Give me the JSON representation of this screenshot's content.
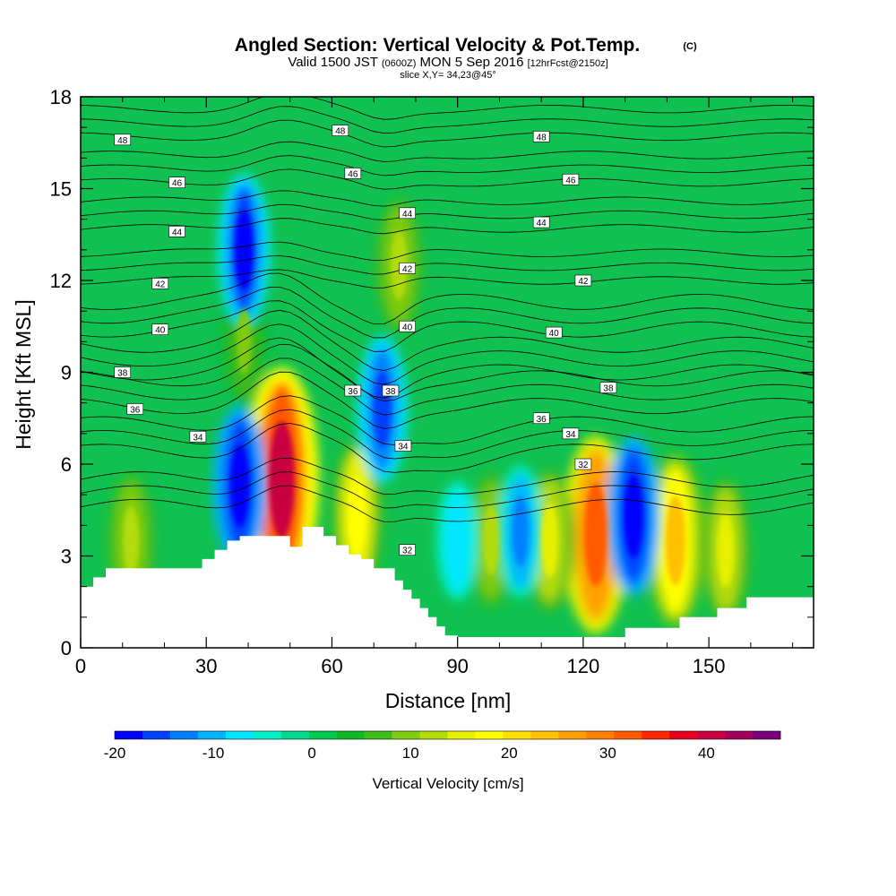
{
  "chart_data": {
    "type": "heatmap",
    "title": "Angled Section: Vertical Velocity & Pot.Temp.",
    "title_badge": "(C)",
    "subtitle_prefix": "Valid 1500 JST",
    "subtitle_utc": "(0600Z)",
    "subtitle_date": "MON 5 Sep 2016",
    "subtitle_fcst": "[12hrFcst@2150z]",
    "slice_label": "slice X,Y= 34,23@45°",
    "xlabel": "Distance [nm]",
    "ylabel": "Height [Kft MSL]",
    "xlim": [
      0,
      175
    ],
    "ylim": [
      0,
      18
    ],
    "x_ticks": [
      0,
      30,
      60,
      90,
      120,
      150
    ],
    "y_ticks": [
      0,
      3,
      6,
      9,
      12,
      15,
      18
    ],
    "colorbar": {
      "label": "Vertical Velocity [cm/s]",
      "range": [
        -20,
        47.5
      ],
      "tick_values": [
        -20,
        -10,
        0,
        10,
        20,
        30,
        40
      ],
      "tick_labels": [
        "-20",
        "-10",
        "0",
        "10",
        "20",
        "30",
        "40"
      ],
      "colors": [
        "#0000ff",
        "#0040ff",
        "#0080ff",
        "#00b4ff",
        "#00e6ff",
        "#00f0c8",
        "#00d890",
        "#00c850",
        "#10b828",
        "#40bc1c",
        "#80cc10",
        "#b4dc08",
        "#e6f000",
        "#ffff00",
        "#ffe000",
        "#ffc000",
        "#ffa000",
        "#ff8000",
        "#ff5a00",
        "#ff2800",
        "#e6001e",
        "#c80040",
        "#a0005a",
        "#780078"
      ]
    },
    "terrain_profile": [
      [
        0,
        2
      ],
      [
        3,
        2
      ],
      [
        3,
        2.3
      ],
      [
        6,
        2.3
      ],
      [
        6,
        2.6
      ],
      [
        29,
        2.6
      ],
      [
        29,
        2.9
      ],
      [
        32,
        2.9
      ],
      [
        32,
        3.2
      ],
      [
        35,
        3.2
      ],
      [
        35,
        3.5
      ],
      [
        38,
        3.5
      ],
      [
        38,
        3.65
      ],
      [
        50,
        3.65
      ],
      [
        50,
        3.3
      ],
      [
        53,
        3.3
      ],
      [
        53,
        3.95
      ],
      [
        58,
        3.95
      ],
      [
        58,
        3.65
      ],
      [
        61,
        3.65
      ],
      [
        61,
        3.35
      ],
      [
        64,
        3.35
      ],
      [
        64,
        3.05
      ],
      [
        67,
        3.05
      ],
      [
        67,
        2.9
      ],
      [
        70,
        2.9
      ],
      [
        70,
        2.6
      ],
      [
        75,
        2.6
      ],
      [
        75,
        2.2
      ],
      [
        77,
        2.2
      ],
      [
        77,
        1.9
      ],
      [
        79,
        1.9
      ],
      [
        79,
        1.6
      ],
      [
        81,
        1.6
      ],
      [
        81,
        1.3
      ],
      [
        83,
        1.3
      ],
      [
        83,
        1.0
      ],
      [
        85,
        1.0
      ],
      [
        85,
        0.7
      ],
      [
        87,
        0.7
      ],
      [
        87,
        0.4
      ],
      [
        90,
        0.4
      ],
      [
        90,
        0.35
      ],
      [
        130,
        0.35
      ],
      [
        130,
        0.65
      ],
      [
        143,
        0.65
      ],
      [
        143,
        1.0
      ],
      [
        152,
        1.0
      ],
      [
        152,
        1.3
      ],
      [
        159,
        1.3
      ],
      [
        159,
        1.65
      ],
      [
        175,
        1.65
      ]
    ],
    "updrafts": [
      {
        "x": 48,
        "z": 5.5,
        "value": 40
      },
      {
        "x": 123,
        "z": 3.7,
        "value": 32
      },
      {
        "x": 142,
        "z": 3.5,
        "value": 24
      },
      {
        "x": 66,
        "z": 4.3,
        "value": 18
      },
      {
        "x": 76,
        "z": 12.5,
        "value": 12
      },
      {
        "x": 39,
        "z": 10.0,
        "value": 10
      },
      {
        "x": 98,
        "z": 3.5,
        "value": 12
      },
      {
        "x": 112,
        "z": 3.5,
        "value": 15
      },
      {
        "x": 154,
        "z": 3.2,
        "value": 15
      },
      {
        "x": 12,
        "z": 3.5,
        "value": 12
      }
    ],
    "downdrafts": [
      {
        "x": 39,
        "z": 13.0,
        "value": -18
      },
      {
        "x": 38,
        "z": 5.3,
        "value": -20
      },
      {
        "x": 72,
        "z": 7.8,
        "value": -16
      },
      {
        "x": 132,
        "z": 4.3,
        "value": -20
      },
      {
        "x": 105,
        "z": 3.8,
        "value": -12
      },
      {
        "x": 90,
        "z": 3.5,
        "value": -8
      }
    ],
    "contour_levels": [
      32,
      34,
      36,
      38,
      40,
      42,
      44,
      46,
      48
    ],
    "contour_labels": [
      {
        "text": "48",
        "x": 10,
        "z": 16.6
      },
      {
        "text": "48",
        "x": 62,
        "z": 16.9
      },
      {
        "text": "48",
        "x": 110,
        "z": 16.7
      },
      {
        "text": "46",
        "x": 23,
        "z": 15.2
      },
      {
        "text": "46",
        "x": 65,
        "z": 15.5
      },
      {
        "text": "46",
        "x": 117,
        "z": 15.3
      },
      {
        "text": "44",
        "x": 23,
        "z": 13.6
      },
      {
        "text": "44",
        "x": 78,
        "z": 14.2
      },
      {
        "text": "44",
        "x": 110,
        "z": 13.9
      },
      {
        "text": "42",
        "x": 19,
        "z": 11.9
      },
      {
        "text": "42",
        "x": 78,
        "z": 12.4
      },
      {
        "text": "42",
        "x": 120,
        "z": 12.0
      },
      {
        "text": "40",
        "x": 19,
        "z": 10.4
      },
      {
        "text": "40",
        "x": 78,
        "z": 10.5
      },
      {
        "text": "40",
        "x": 113,
        "z": 10.3
      },
      {
        "text": "38",
        "x": 10,
        "z": 9.0
      },
      {
        "text": "38",
        "x": 74,
        "z": 8.4
      },
      {
        "text": "38",
        "x": 126,
        "z": 8.5
      },
      {
        "text": "36",
        "x": 13,
        "z": 7.8
      },
      {
        "text": "36",
        "x": 65,
        "z": 8.4
      },
      {
        "text": "36",
        "x": 110,
        "z": 7.5
      },
      {
        "text": "34",
        "x": 28,
        "z": 6.9
      },
      {
        "text": "34",
        "x": 77,
        "z": 6.6
      },
      {
        "text": "34",
        "x": 117,
        "z": 7.0
      },
      {
        "text": "32",
        "x": 78,
        "z": 3.2
      },
      {
        "text": "32",
        "x": 120,
        "z": 6.0
      }
    ],
    "grid": false
  }
}
